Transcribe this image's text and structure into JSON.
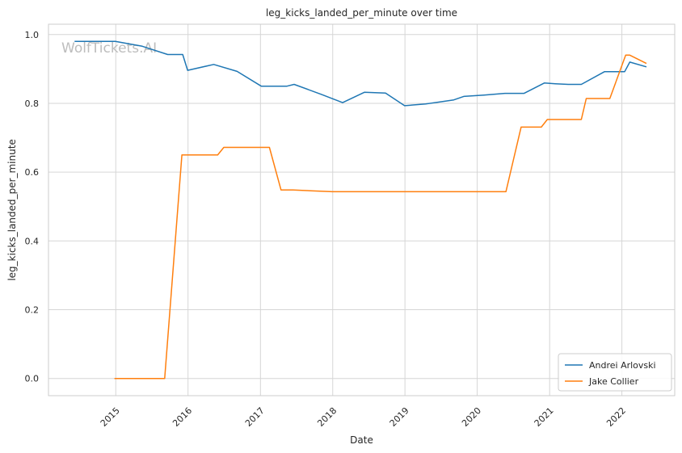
{
  "chart_data": {
    "type": "line",
    "title": "leg_kicks_landed_per_minute over time",
    "xlabel": "Date",
    "ylabel": "leg_kicks_landed_per_minute",
    "watermark": "WolfTickets.AI",
    "x_ticks": [
      "2015",
      "2016",
      "2017",
      "2018",
      "2019",
      "2020",
      "2021",
      "2022"
    ],
    "y_ticks": [
      "0.0",
      "0.2",
      "0.4",
      "0.6",
      "0.8",
      "1.0"
    ],
    "xlim": [
      "2014-01-26",
      "2022-09-25"
    ],
    "ylim": [
      -0.05,
      1.03
    ],
    "grid": true,
    "legend_position": "lower-right",
    "series": [
      {
        "name": "Andrei Arlovski",
        "color": "#1f77b4",
        "points": [
          [
            "2014-06-07",
            0.98
          ],
          [
            "2014-12-30",
            0.98
          ],
          [
            "2015-05-15",
            0.966
          ],
          [
            "2015-09-20",
            0.942
          ],
          [
            "2015-12-05",
            0.942
          ],
          [
            "2015-12-30",
            0.896
          ],
          [
            "2016-05-10",
            0.913
          ],
          [
            "2016-09-05",
            0.893
          ],
          [
            "2017-01-05",
            0.85
          ],
          [
            "2017-05-15",
            0.85
          ],
          [
            "2017-06-20",
            0.855
          ],
          [
            "2017-11-05",
            0.826
          ],
          [
            "2018-02-20",
            0.802
          ],
          [
            "2018-06-10",
            0.832
          ],
          [
            "2018-09-25",
            0.83
          ],
          [
            "2018-12-30",
            0.793
          ],
          [
            "2019-04-15",
            0.798
          ],
          [
            "2019-09-05",
            0.81
          ],
          [
            "2019-10-25",
            0.82
          ],
          [
            "2020-02-05",
            0.824
          ],
          [
            "2020-05-20",
            0.829
          ],
          [
            "2020-08-25",
            0.829
          ],
          [
            "2020-12-05",
            0.859
          ],
          [
            "2021-01-30",
            0.857
          ],
          [
            "2021-04-05",
            0.855
          ],
          [
            "2021-06-10",
            0.855
          ],
          [
            "2021-10-05",
            0.892
          ],
          [
            "2022-01-15",
            0.892
          ],
          [
            "2022-02-10",
            0.92
          ],
          [
            "2022-05-05",
            0.906
          ]
        ]
      },
      {
        "name": "Jake Collier",
        "color": "#ff7f0e",
        "points": [
          [
            "2014-12-25",
            0.0
          ],
          [
            "2015-09-05",
            0.0
          ],
          [
            "2015-12-01",
            0.65
          ],
          [
            "2016-05-30",
            0.65
          ],
          [
            "2016-06-30",
            0.672
          ],
          [
            "2017-02-15",
            0.672
          ],
          [
            "2017-04-15",
            0.548
          ],
          [
            "2017-06-15",
            0.548
          ],
          [
            "2017-12-30",
            0.543
          ],
          [
            "2020-05-25",
            0.543
          ],
          [
            "2020-08-10",
            0.731
          ],
          [
            "2020-11-20",
            0.731
          ],
          [
            "2020-12-20",
            0.753
          ],
          [
            "2021-06-10",
            0.753
          ],
          [
            "2021-07-05",
            0.814
          ],
          [
            "2021-11-01",
            0.814
          ],
          [
            "2022-01-20",
            0.94
          ],
          [
            "2022-02-10",
            0.94
          ],
          [
            "2022-05-05",
            0.916
          ]
        ]
      }
    ]
  }
}
